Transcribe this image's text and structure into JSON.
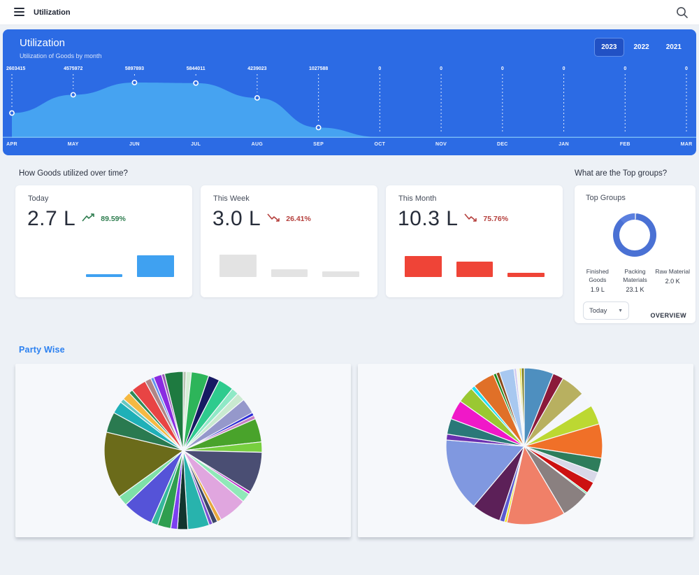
{
  "topbar": {
    "title": "Utilization"
  },
  "banner": {
    "title": "Utilization",
    "subtitle": "Utilization of Goods by month",
    "years": [
      {
        "label": "2023",
        "active": true
      },
      {
        "label": "2022",
        "active": false
      },
      {
        "label": "2021",
        "active": false
      }
    ],
    "chart": {
      "type": "area",
      "months": [
        "APR",
        "MAY",
        "JUN",
        "JUL",
        "AUG",
        "SEP",
        "OCT",
        "NOV",
        "DEC",
        "JAN",
        "FEB",
        "MAR"
      ],
      "values": [
        2603415,
        4575972,
        5897893,
        5844011,
        4239023,
        1027588,
        0,
        0,
        0,
        0,
        0,
        0
      ],
      "area_color": "#46a3f1",
      "background_color": "#2c6be4",
      "point_stroke": "#ffffff",
      "baseline_color": "#8cc8f8"
    }
  },
  "sections": {
    "time_title": "How Goods utilized over time?",
    "groups_title": "What are the Top groups?",
    "party_title": "Party Wise"
  },
  "trend_colors": {
    "up": "#2e7d4f",
    "down": "#b5403d"
  },
  "stat_cards": [
    {
      "title": "Today",
      "value": "2.7 L",
      "trend": "up",
      "percent": "89.59%",
      "bar_color": "#3fa1f1",
      "bars": [
        0,
        4,
        31
      ]
    },
    {
      "title": "This Week",
      "value": "3.0 L",
      "trend": "down",
      "percent": "26.41%",
      "bar_color": "#e3e3e3",
      "bars": [
        32,
        11,
        8
      ]
    },
    {
      "title": "This Month",
      "value": "10.3 L",
      "trend": "down",
      "percent": "75.76%",
      "bar_color": "#ef4437",
      "bars": [
        30,
        22,
        6
      ]
    }
  ],
  "top_groups": {
    "title": "Top Groups",
    "donut_segments": [
      {
        "color": "#c3cfeb",
        "value": 1.2
      },
      {
        "color": "#4a71d4",
        "value": 87.0
      },
      {
        "color": "#5b7fdf",
        "value": 11.8
      }
    ],
    "groups": [
      {
        "name": "Finished Goods",
        "value": "1.9 L"
      },
      {
        "name": "Packing Materials",
        "value": "23.1 K"
      },
      {
        "name": "Raw Material",
        "value": "2.0 K"
      }
    ],
    "filter_label": "Today",
    "overview_label": "OVERVIEW"
  },
  "party_wise": {
    "pies": [
      {
        "segments": [
          {
            "color": "#b8c4b0",
            "value": 0.6
          },
          {
            "color": "#d6efd6",
            "value": 1.0
          },
          {
            "color": "#2db55a",
            "value": 3.4
          },
          {
            "color": "#171a63",
            "value": 2.2
          },
          {
            "color": "#2ecb8e",
            "value": 3.0
          },
          {
            "color": "#8fe9c6",
            "value": 1.4
          },
          {
            "color": "#c9ead0",
            "value": 1.6
          },
          {
            "color": "#9598cb",
            "value": 3.0
          },
          {
            "color": "#2b2bd6",
            "value": 0.6
          },
          {
            "color": "#c77fc2",
            "value": 0.7
          },
          {
            "color": "#49a32b",
            "value": 4.6
          },
          {
            "color": "#77cf3f",
            "value": 2.0
          },
          {
            "color": "#4a4e73",
            "value": 8.0
          },
          {
            "color": "#b525c4",
            "value": 0.5
          },
          {
            "color": "#90e8b8",
            "value": 1.8
          },
          {
            "color": "#e0a6df",
            "value": 5.5
          },
          {
            "color": "#e8a73c",
            "value": 0.8
          },
          {
            "color": "#3c4668",
            "value": 1.0
          },
          {
            "color": "#7a4fd0",
            "value": 0.7
          },
          {
            "color": "#28b3ad",
            "value": 4.2
          },
          {
            "color": "#12352e",
            "value": 2.0
          },
          {
            "color": "#7c3ff0",
            "value": 1.3
          },
          {
            "color": "#2f9e4f",
            "value": 2.6
          },
          {
            "color": "#35b89b",
            "value": 1.3
          },
          {
            "color": "#5553d8",
            "value": 6.0
          },
          {
            "color": "#7ee0a8",
            "value": 2.0
          },
          {
            "color": "#6b6b1a",
            "value": 13.0
          },
          {
            "color": "#2a7a50",
            "value": 4.0
          },
          {
            "color": "#1fb0b8",
            "value": 2.4
          },
          {
            "color": "#64c8c0",
            "value": 0.8
          },
          {
            "color": "#f5b942",
            "value": 1.6
          },
          {
            "color": "#2e8b57",
            "value": 0.8
          },
          {
            "color": "#e84444",
            "value": 3.0
          },
          {
            "color": "#b08585",
            "value": 1.2
          },
          {
            "color": "#6495ed",
            "value": 0.6
          },
          {
            "color": "#8a2be2",
            "value": 1.6
          },
          {
            "color": "#9b59b6",
            "value": 0.6
          },
          {
            "color": "#1e7a40",
            "value": 3.6
          }
        ]
      },
      {
        "segments": [
          {
            "color": "#4e8fbf",
            "value": 6.0
          },
          {
            "color": "#8b1a3a",
            "value": 2.2
          },
          {
            "color": "#b8b060",
            "value": 5.0
          },
          {
            "color": "#f4f6fc",
            "value": 3.0
          },
          {
            "color": "#bcd832",
            "value": 4.0
          },
          {
            "color": "#f07028",
            "value": 7.0
          },
          {
            "color": "#2e7d5b",
            "value": 3.0
          },
          {
            "color": "#d8d8e8",
            "value": 2.2
          },
          {
            "color": "#cc1111",
            "value": 2.4
          },
          {
            "color": "#3ddc84",
            "value": 0.3
          },
          {
            "color": "#8a8080",
            "value": 6.0
          },
          {
            "color": "#f08068",
            "value": 12.0
          },
          {
            "color": "#f0e020",
            "value": 0.5
          },
          {
            "color": "#5a5ad0",
            "value": 1.0
          },
          {
            "color": "#5c2058",
            "value": 6.0
          },
          {
            "color": "#8098e0",
            "value": 15.0
          },
          {
            "color": "#6a30b0",
            "value": 1.2
          },
          {
            "color": "#2a7878",
            "value": 3.2
          },
          {
            "color": "#f018c8",
            "value": 4.0
          },
          {
            "color": "#9ac832",
            "value": 3.4
          },
          {
            "color": "#20e0f0",
            "value": 0.8
          },
          {
            "color": "#e07028",
            "value": 4.5
          },
          {
            "color": "#1a8a1a",
            "value": 0.6
          },
          {
            "color": "#8a4a1a",
            "value": 0.7
          },
          {
            "color": "#a8c8f0",
            "value": 3.0
          },
          {
            "color": "#d0c8f0",
            "value": 0.5
          },
          {
            "color": "#f8f8e8",
            "value": 0.6
          },
          {
            "color": "#e8e020",
            "value": 0.4
          },
          {
            "color": "#808020",
            "value": 0.6
          }
        ]
      }
    ]
  }
}
